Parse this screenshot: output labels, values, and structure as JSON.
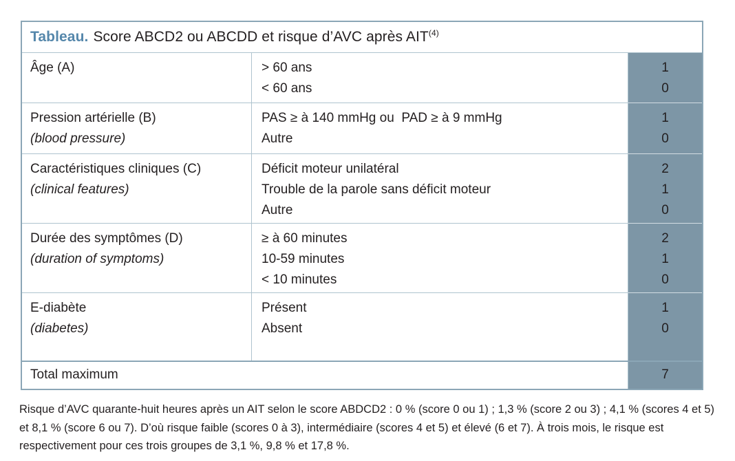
{
  "colors": {
    "accent": "#5587ab",
    "score_column_bg": "#7d96a6",
    "outer_border": "#8ba6b6",
    "row_separator": "#aec3ce",
    "text": "#231f20"
  },
  "table": {
    "title": {
      "label": "Tableau.",
      "text": "Score ABCD2 ou ABCDD et risque d’AVC après AIT",
      "reference": "(4)"
    },
    "rows": [
      {
        "category": "Âge (A)",
        "category_en": "",
        "options": [
          "> 60 ans",
          "< 60 ans"
        ],
        "scores": [
          "1",
          "0"
        ]
      },
      {
        "category": "Pression artérielle (B)",
        "category_en": "(blood pressure)",
        "options": [
          "PAS ≥ à 140 mmHg ou  PAD ≥ à 9 mmHg",
          "Autre"
        ],
        "scores": [
          "1",
          "0"
        ]
      },
      {
        "category": "Caractéristiques cliniques (C)",
        "category_en": "(clinical features)",
        "options": [
          "Déficit moteur unilatéral",
          "Trouble de la parole sans déficit moteur",
          "Autre"
        ],
        "scores": [
          "2",
          "1",
          "0"
        ]
      },
      {
        "category": "Durée des symptômes (D)",
        "category_en": "(duration of symptoms)",
        "options": [
          "≥ à 60 minutes",
          "10-59 minutes",
          "< 10 minutes"
        ],
        "scores": [
          "2",
          "1",
          "0"
        ]
      },
      {
        "category": "E-diabète",
        "category_en": "(diabetes)",
        "options": [
          "Présent",
          "Absent"
        ],
        "scores": [
          "1",
          "0"
        ]
      }
    ],
    "total": {
      "label": "Total maximum",
      "score": "7"
    }
  },
  "footnote": {
    "text": "Risque d’AVC quarante-huit heures après un AIT selon le score ABDCD2 : 0 % (score 0 ou 1) ; 1,3 % (score 2 ou 3) ; 4,1 % (scores 4 et 5) et 8,1 % (score 6 ou 7). D’où risque faible (scores 0 à 3), intermédiaire (scores 4 et 5) et élevé (6 et 7).  À trois mois, le risque est respectivement pour ces trois groupes de 3,1 %, 9,8 % et 17,8 %."
  }
}
